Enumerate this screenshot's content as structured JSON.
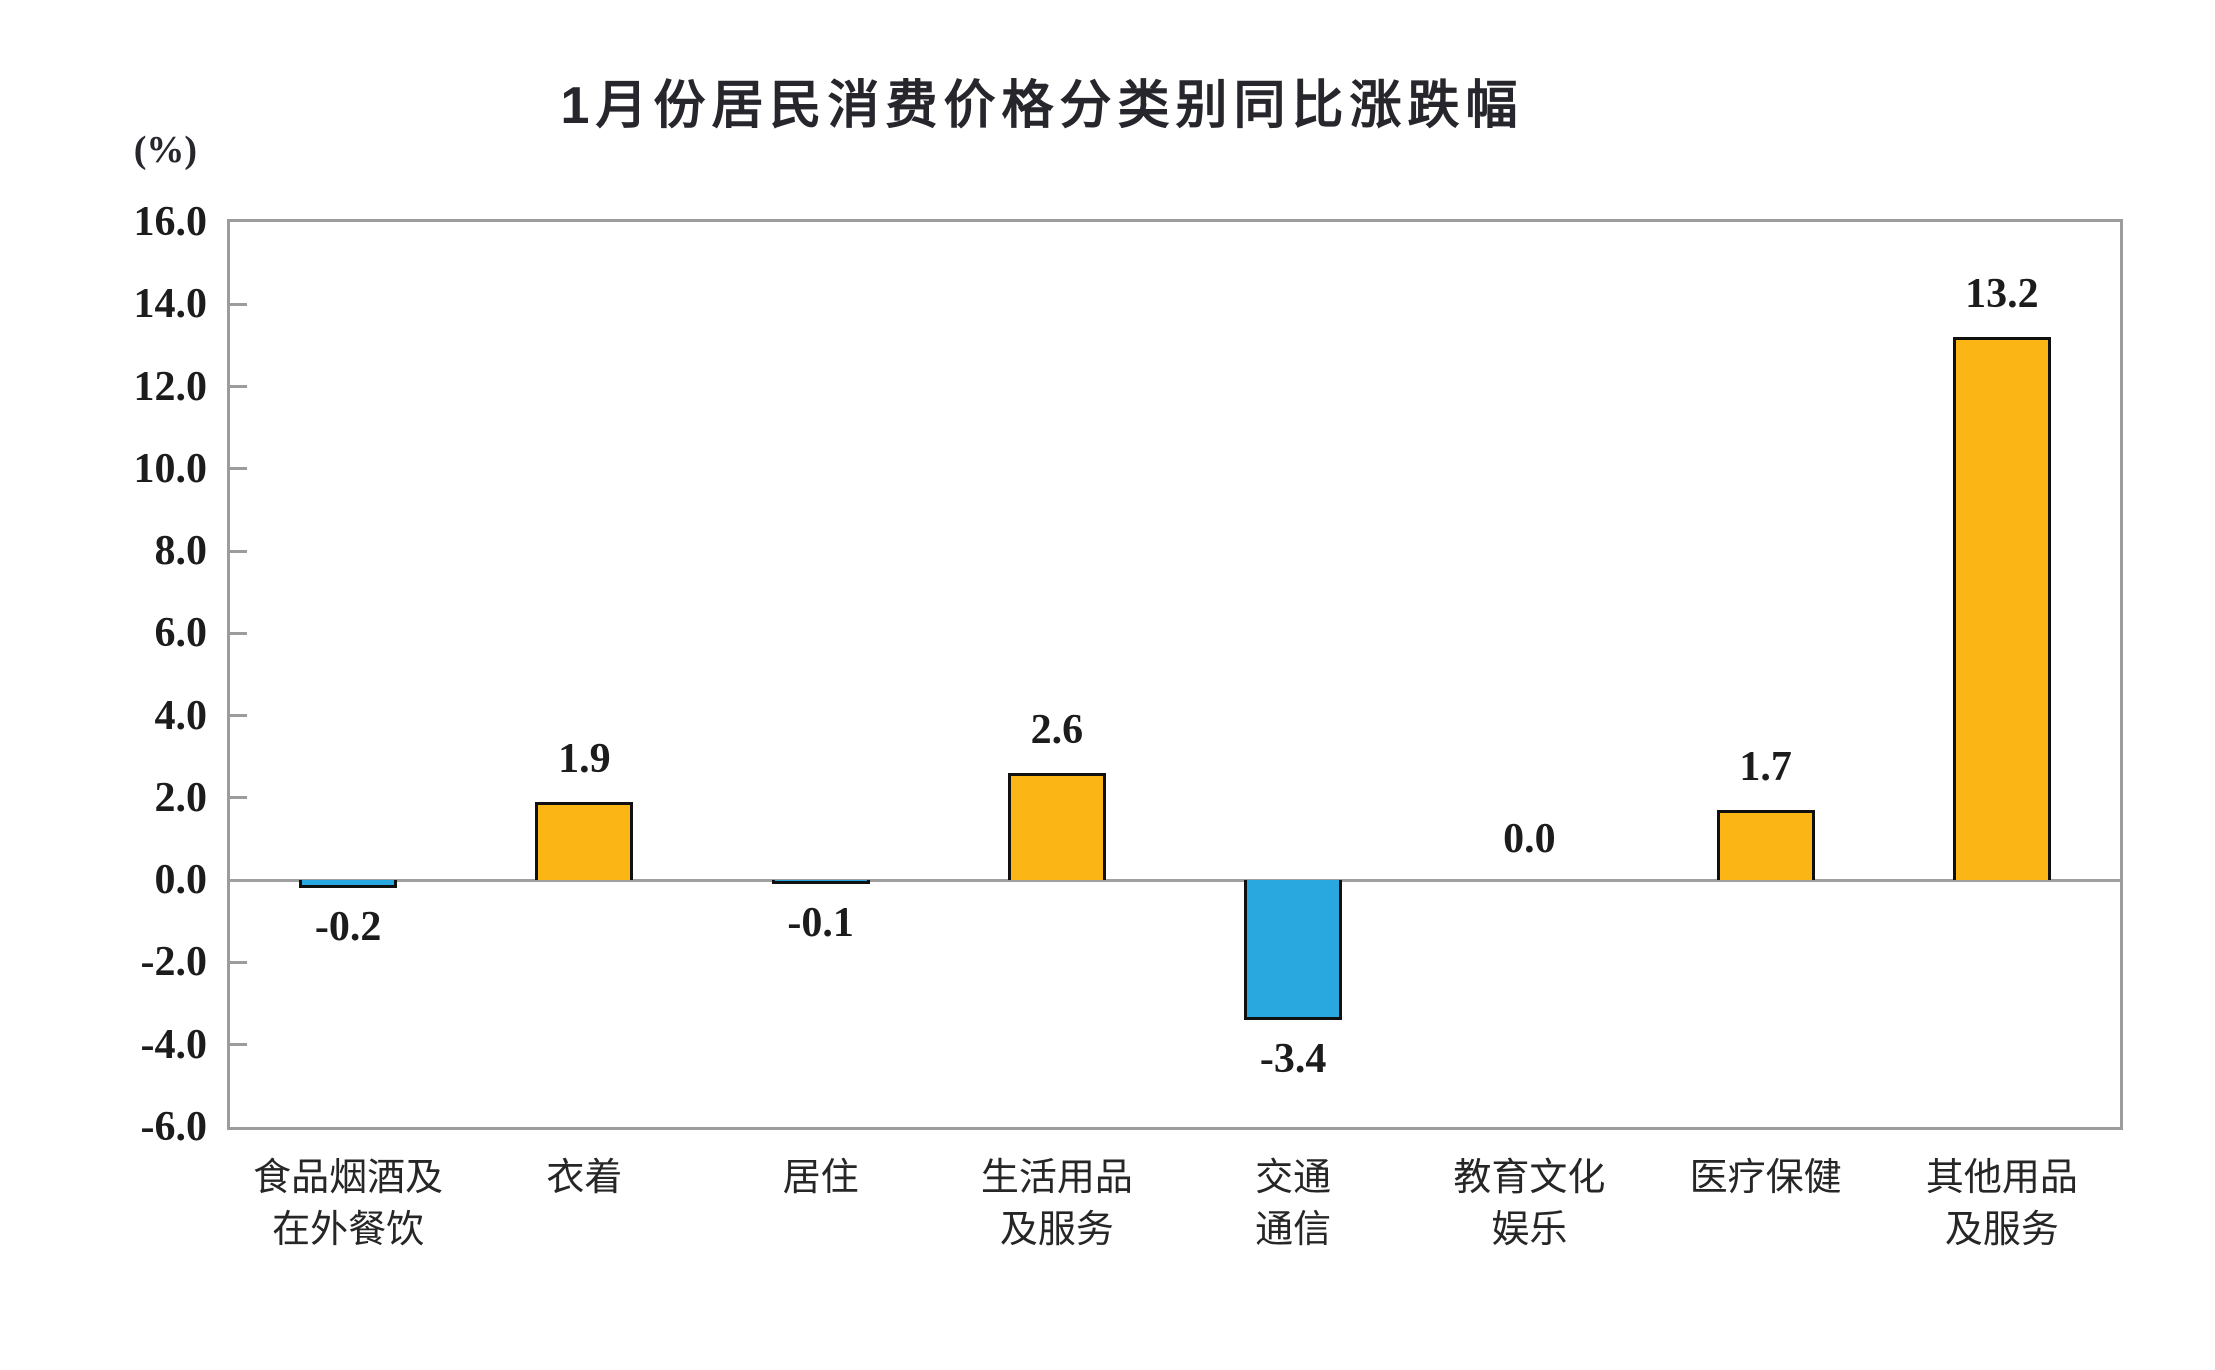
{
  "chart_data": {
    "type": "bar",
    "title": "1月份居民消费价格分类别同比涨跌幅",
    "unit_label": "(%)",
    "categories": [
      "食品烟酒及\n在外餐饮",
      "衣着",
      "居住",
      "生活用品\n及服务",
      "交通\n通信",
      "教育文化\n娱乐",
      "医疗保健",
      "其他用品\n及服务"
    ],
    "values": [
      -0.2,
      1.9,
      -0.1,
      2.6,
      -3.4,
      0.0,
      1.7,
      13.2
    ],
    "value_labels": [
      "-0.2",
      "1.9",
      "-0.1",
      "2.6",
      "-3.4",
      "0.0",
      "1.7",
      "13.2"
    ],
    "ylim": [
      -6.0,
      16.0
    ],
    "ytick_step": 2.0,
    "ytick_labels": [
      "16.0",
      "14.0",
      "12.0",
      "10.0",
      "8.0",
      "6.0",
      "4.0",
      "2.0",
      "0.0",
      "-2.0",
      "-4.0",
      "-6.0"
    ],
    "grid": false,
    "legend": null,
    "colors": {
      "positive_bar": "#FBB615",
      "negative_bar": "#29A8DF",
      "bar_border": "#101010",
      "axis": "#9C9C9C",
      "zero_line": "#A0A0A0",
      "text": "#1C1C1C",
      "background": "#FFFFFF"
    }
  }
}
